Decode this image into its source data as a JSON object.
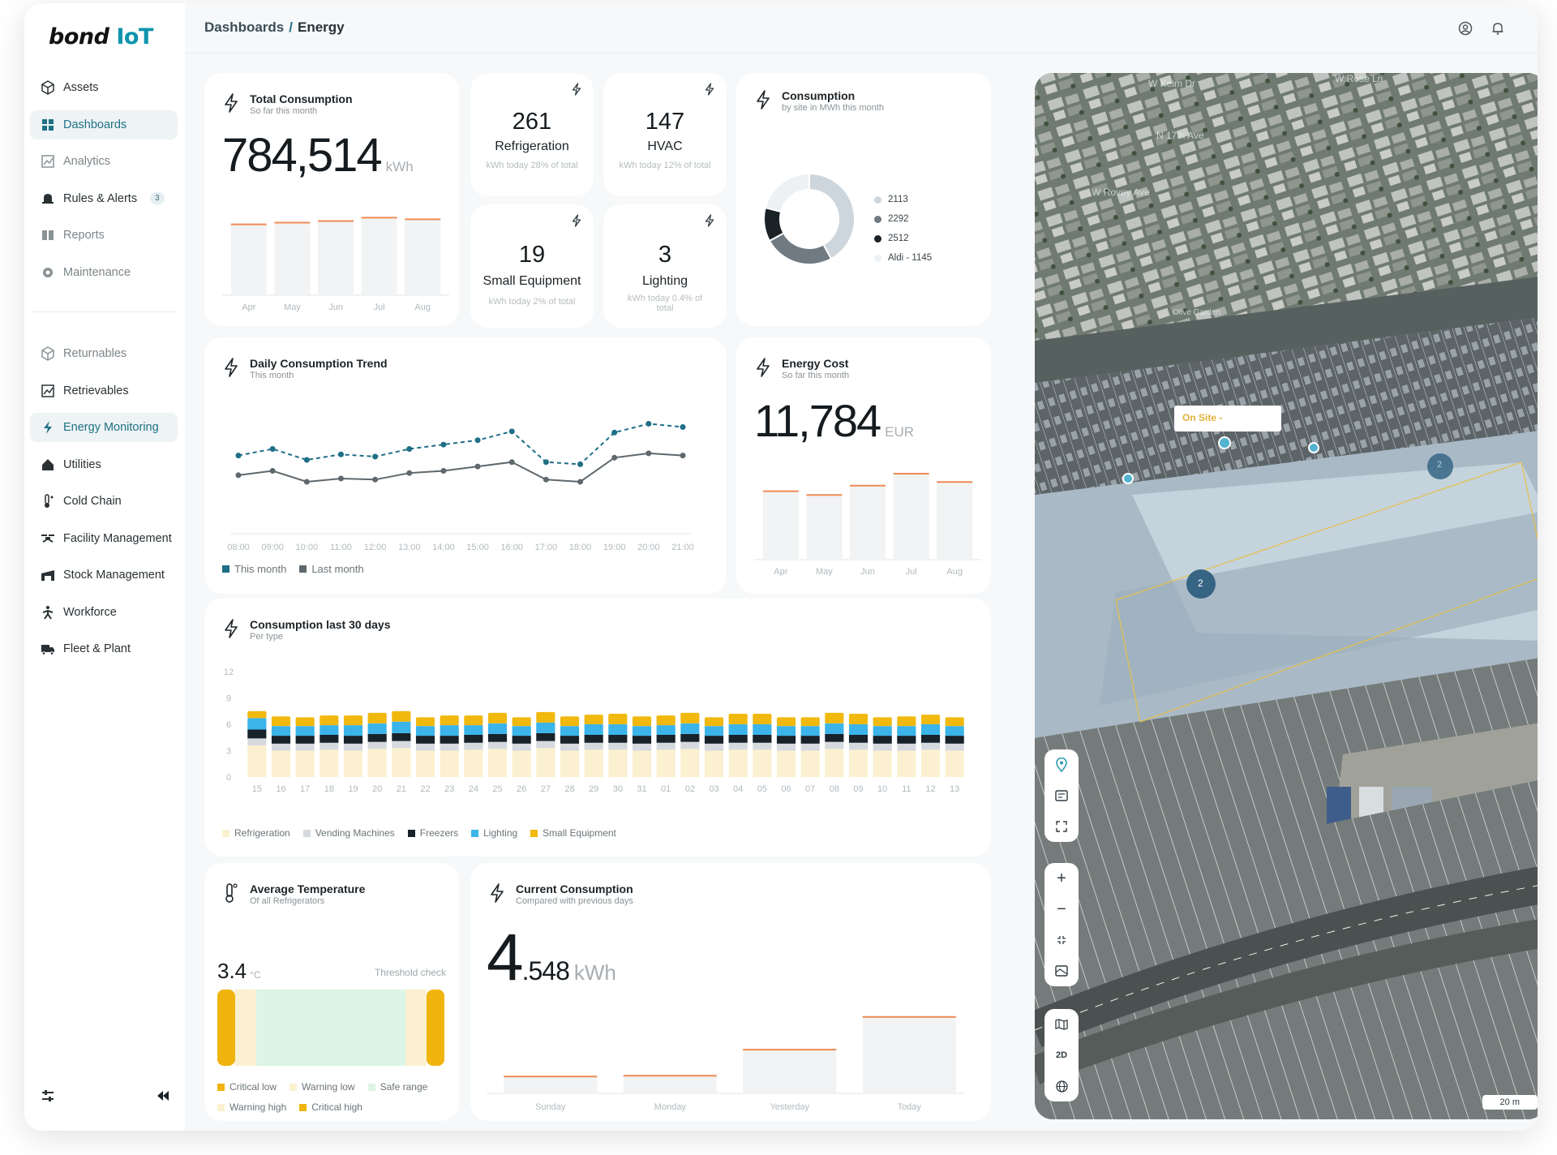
{
  "logo": {
    "text": "bond",
    "accent": "IoT"
  },
  "breadcrumb": {
    "parent": "Dashboards",
    "current": "Energy"
  },
  "sidebar": {
    "items": [
      {
        "label": "Assets",
        "icon": "cube-icon",
        "state": "normal"
      },
      {
        "label": "Dashboards",
        "icon": "dashboard-icon",
        "state": "active"
      },
      {
        "label": "Analytics",
        "icon": "analytics-icon",
        "state": "muted"
      },
      {
        "label": "Rules & Alerts",
        "icon": "bell-icon",
        "state": "normal",
        "badge": "3"
      },
      {
        "label": "Reports",
        "icon": "book-icon",
        "state": "muted"
      },
      {
        "label": "Maintenance",
        "icon": "gear-icon",
        "state": "muted"
      }
    ],
    "items2": [
      {
        "label": "Returnables",
        "icon": "cube-icon",
        "state": "muted"
      },
      {
        "label": "Retrievables",
        "icon": "chart-icon",
        "state": "normal"
      },
      {
        "label": "Energy Monitoring",
        "icon": "bolt-icon",
        "state": "active"
      },
      {
        "label": "Utilities",
        "icon": "house-icon",
        "state": "normal"
      },
      {
        "label": "Cold Chain",
        "icon": "thermometer-icon",
        "state": "normal"
      },
      {
        "label": "Facility Management",
        "icon": "drone-icon",
        "state": "normal"
      },
      {
        "label": "Stock Management",
        "icon": "warehouse-icon",
        "state": "normal"
      },
      {
        "label": "Workforce",
        "icon": "person-icon",
        "state": "normal"
      },
      {
        "label": "Fleet & Plant",
        "icon": "truck-icon",
        "state": "normal"
      }
    ]
  },
  "total_consumption": {
    "title": "Total Consumption",
    "subtitle": "So far this month",
    "value": "784,514",
    "unit": "kWh"
  },
  "kpis": [
    {
      "value": "261",
      "label": "Refrigeration",
      "sub": "kWh today 28% of total"
    },
    {
      "value": "147",
      "label": "HVAC",
      "sub": "kWh today 12% of total"
    },
    {
      "value": "19",
      "label": "Small Equipment",
      "sub": "kWh today 2% of total"
    },
    {
      "value": "3",
      "label": "Lighting",
      "sub": "kWh today 0.4% of total"
    }
  ],
  "consumption_site": {
    "title": "Consumption",
    "subtitle": "by site in MWh this month",
    "legend": [
      "2113",
      "2292",
      "2512",
      "Aldi - 1145"
    ]
  },
  "daily_trend": {
    "title": "Daily Consumption Trend",
    "subtitle": "This month",
    "legend": [
      "This month",
      "Last month"
    ]
  },
  "energy_cost": {
    "title": "Energy Cost",
    "subtitle": "So far this month",
    "value": "11,784",
    "unit": "EUR"
  },
  "last30": {
    "title": "Consumption last 30 days",
    "subtitle": "Per type",
    "legend": [
      "Refrigeration",
      "Vending Machines",
      "Freezers",
      "Lighting",
      "Small Equipment"
    ]
  },
  "avg_temp": {
    "title": "Average Temperature",
    "subtitle": "Of all Refrigerators",
    "value": "3.4",
    "unit": "°C",
    "threshold": "Threshold check",
    "legend": [
      "Critical low",
      "Warning low",
      "Safe range",
      "Warning high",
      "Critical high"
    ]
  },
  "current": {
    "title": "Current Consumption",
    "subtitle": "Compared with previous days",
    "value_int": "4",
    "value_dec": ".548",
    "unit": "kWh"
  },
  "map": {
    "onsite": "On Site -",
    "scale": "20 m",
    "mode": "2D",
    "streets": [
      "W Keim Dr",
      "W Rose Ln",
      "W Rovey Ave",
      "N 17th Ave",
      "Olive Garden"
    ],
    "clusters": [
      "2",
      "2"
    ]
  },
  "chart_data": [
    {
      "type": "bar",
      "id": "total_consumption",
      "categories": [
        "Apr",
        "May",
        "Jun",
        "Jul",
        "Aug"
      ],
      "values": [
        84,
        86,
        88,
        92,
        90
      ],
      "ylim": [
        0,
        100
      ]
    },
    {
      "type": "pie",
      "id": "consumption_by_site",
      "categories": [
        "2113",
        "2292",
        "2512",
        "Aldi - 1145"
      ],
      "values": [
        42,
        25,
        12,
        21
      ],
      "colors": [
        "#cdd6dc",
        "#6f7a83",
        "#1b2226",
        "#eef1f3"
      ]
    },
    {
      "type": "line",
      "id": "daily_trend",
      "x": [
        "08:00",
        "09:00",
        "10:00",
        "11:00",
        "12:00",
        "13:00",
        "14:00",
        "15:00",
        "16:00",
        "17:00",
        "18:00",
        "19:00",
        "20:00",
        "21:00"
      ],
      "series": [
        {
          "name": "This month",
          "values": [
            64,
            70,
            60,
            65,
            63,
            70,
            74,
            78,
            86,
            58,
            56,
            85,
            93,
            90
          ]
        },
        {
          "name": "Last month",
          "values": [
            46,
            50,
            40,
            43,
            42,
            48,
            50,
            54,
            58,
            42,
            40,
            62,
            66,
            64
          ]
        }
      ],
      "ylim": [
        0,
        120
      ]
    },
    {
      "type": "bar",
      "id": "energy_cost",
      "categories": [
        "Apr",
        "May",
        "Jun",
        "Jul",
        "Aug"
      ],
      "values": [
        74,
        70,
        80,
        93,
        84
      ],
      "ylim": [
        0,
        100
      ]
    },
    {
      "type": "bar",
      "id": "last30",
      "stacked": true,
      "categories": [
        "15",
        "16",
        "17",
        "18",
        "19",
        "20",
        "21",
        "22",
        "23",
        "24",
        "25",
        "26",
        "27",
        "28",
        "29",
        "30",
        "31",
        "01",
        "02",
        "03",
        "04",
        "05",
        "06",
        "07",
        "08",
        "09",
        "10",
        "11",
        "12",
        "13"
      ],
      "yticks": [
        "0",
        "3",
        "6",
        "9",
        "12"
      ],
      "ylim": [
        0,
        12
      ],
      "series": [
        {
          "name": "Refrigeration",
          "values": [
            3.6,
            3.0,
            3.0,
            3.1,
            3.0,
            3.2,
            3.3,
            3.0,
            3.0,
            3.1,
            3.2,
            3.0,
            3.3,
            3.0,
            3.1,
            3.1,
            3.0,
            3.1,
            3.2,
            3.0,
            3.1,
            3.1,
            3.0,
            3.0,
            3.2,
            3.1,
            3.0,
            3.0,
            3.1,
            3.0
          ]
        },
        {
          "name": "Vending Machines",
          "values": [
            0.8,
            0.8,
            0.8,
            0.8,
            0.8,
            0.8,
            0.8,
            0.8,
            0.8,
            0.8,
            0.8,
            0.8,
            0.8,
            0.8,
            0.8,
            0.8,
            0.8,
            0.8,
            0.8,
            0.8,
            0.8,
            0.8,
            0.8,
            0.8,
            0.8,
            0.8,
            0.8,
            0.8,
            0.8,
            0.8
          ]
        },
        {
          "name": "Freezers",
          "values": [
            1.0,
            0.9,
            0.9,
            0.9,
            0.9,
            0.9,
            0.9,
            0.9,
            0.9,
            0.9,
            0.9,
            0.9,
            0.9,
            0.9,
            0.9,
            0.9,
            0.9,
            0.9,
            0.9,
            0.9,
            0.9,
            0.9,
            0.9,
            0.9,
            0.9,
            0.9,
            0.9,
            0.9,
            0.9,
            0.9
          ]
        },
        {
          "name": "Lighting",
          "values": [
            1.3,
            1.1,
            1.1,
            1.1,
            1.2,
            1.2,
            1.3,
            1.1,
            1.2,
            1.1,
            1.2,
            1.1,
            1.2,
            1.1,
            1.2,
            1.2,
            1.1,
            1.1,
            1.2,
            1.1,
            1.2,
            1.2,
            1.1,
            1.1,
            1.2,
            1.2,
            1.1,
            1.1,
            1.2,
            1.1
          ]
        },
        {
          "name": "Small Equipment",
          "values": [
            0.8,
            1.1,
            1.0,
            1.1,
            1.1,
            1.2,
            1.2,
            1.0,
            1.1,
            1.1,
            1.2,
            1.0,
            1.2,
            1.1,
            1.1,
            1.2,
            1.1,
            1.1,
            1.2,
            1.0,
            1.2,
            1.2,
            1.0,
            1.0,
            1.2,
            1.2,
            1.0,
            1.1,
            1.1,
            1.0
          ]
        }
      ],
      "colors": [
        "#fbf1d0",
        "#d6dade",
        "#18222b",
        "#3bb4ea",
        "#f1b80d"
      ]
    },
    {
      "type": "bar",
      "id": "current_consumption",
      "categories": [
        "Sunday",
        "Monday",
        "Yesterday",
        "Today"
      ],
      "values": [
        1.0,
        1.05,
        2.6,
        4.548
      ],
      "ylim": [
        0,
        5.5
      ]
    }
  ]
}
